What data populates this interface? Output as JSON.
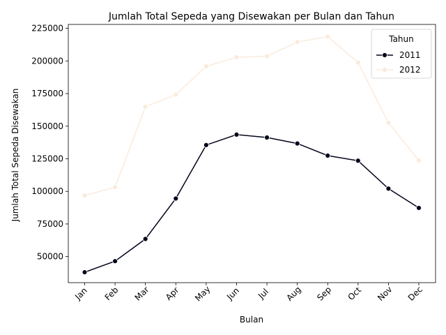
{
  "chart_data": {
    "type": "line",
    "title": "Jumlah Total Sepeda yang Disewakan per Bulan dan Tahun",
    "xlabel": "Bulan",
    "ylabel": "Jumlah Total Sepeda Disewakan",
    "categories": [
      "Jan",
      "Feb",
      "Mar",
      "Apr",
      "May",
      "Jun",
      "Jul",
      "Aug",
      "Sep",
      "Oct",
      "Nov",
      "Dec"
    ],
    "ylim": [
      30000,
      228000
    ],
    "yticks": [
      "50000",
      "75000",
      "100000",
      "125000",
      "150000",
      "175000",
      "200000",
      "225000"
    ],
    "grid": false,
    "legend": {
      "title": "Tahun",
      "placement": "top-right"
    },
    "series": [
      {
        "name": "2011",
        "color": "#03051a",
        "values": [
          38000,
          46500,
          63500,
          94500,
          135500,
          143500,
          141300,
          136700,
          127400,
          123500,
          102100,
          87300
        ]
      },
      {
        "name": "2012",
        "color": "#faebdd",
        "values": [
          96800,
          103200,
          164900,
          174200,
          195900,
          202800,
          203600,
          214500,
          218600,
          198800,
          152600,
          123700
        ]
      }
    ]
  }
}
